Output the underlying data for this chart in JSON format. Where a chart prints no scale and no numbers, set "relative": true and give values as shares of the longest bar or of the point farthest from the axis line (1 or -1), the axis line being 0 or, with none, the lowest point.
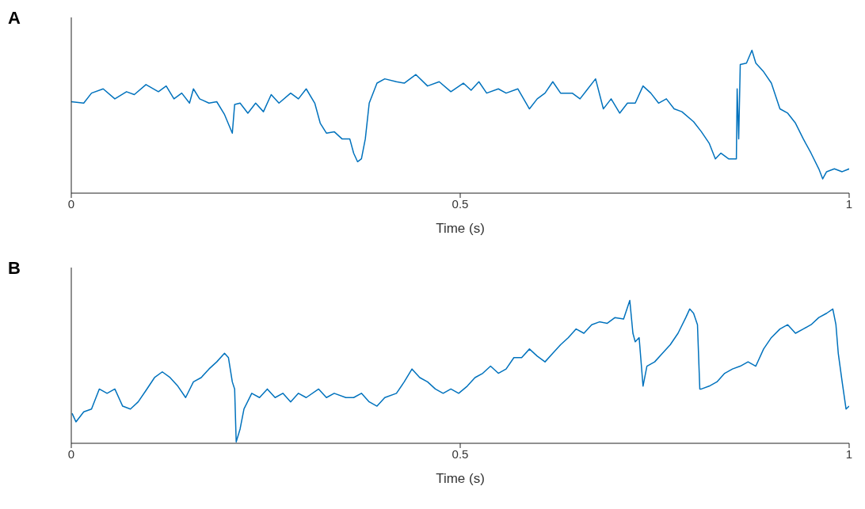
{
  "chart_data": [
    {
      "type": "line",
      "title": "A",
      "xlabel": "Time (s)",
      "relative": true,
      "xlim": [
        0,
        1
      ],
      "xticks": [
        0,
        0.5,
        1
      ],
      "line_style": "solid",
      "series": [
        {
          "color": "#0072bd",
          "x": [
            0,
            0.016,
            0.026,
            0.041,
            0.056,
            0.071,
            0.081,
            0.096,
            0.112,
            0.122,
            0.132,
            0.142,
            0.152,
            0.157,
            0.165,
            0.177,
            0.187,
            0.197,
            0.207,
            0.21,
            0.217,
            0.227,
            0.237,
            0.247,
            0.257,
            0.267,
            0.282,
            0.292,
            0.302,
            0.313,
            0.32,
            0.328,
            0.338,
            0.348,
            0.358,
            0.363,
            0.368,
            0.373,
            0.378,
            0.383,
            0.393,
            0.403,
            0.418,
            0.428,
            0.443,
            0.458,
            0.473,
            0.488,
            0.504,
            0.514,
            0.524,
            0.534,
            0.549,
            0.559,
            0.574,
            0.589,
            0.599,
            0.609,
            0.619,
            0.629,
            0.644,
            0.654,
            0.664,
            0.674,
            0.684,
            0.694,
            0.705,
            0.715,
            0.725,
            0.735,
            0.745,
            0.755,
            0.765,
            0.775,
            0.785,
            0.8,
            0.81,
            0.82,
            0.828,
            0.835,
            0.845,
            0.855,
            0.856,
            0.858,
            0.86,
            0.868,
            0.875,
            0.88,
            0.89,
            0.9,
            0.911,
            0.921,
            0.931,
            0.941,
            0.951,
            0.961,
            0.966,
            0.971,
            0.981,
            0.991,
            1
          ],
          "values": [
            0.64,
            0.63,
            0.7,
            0.73,
            0.66,
            0.71,
            0.69,
            0.76,
            0.71,
            0.75,
            0.66,
            0.7,
            0.63,
            0.73,
            0.66,
            0.63,
            0.64,
            0.55,
            0.42,
            0.62,
            0.63,
            0.56,
            0.63,
            0.57,
            0.69,
            0.63,
            0.7,
            0.66,
            0.73,
            0.63,
            0.49,
            0.42,
            0.43,
            0.38,
            0.38,
            0.28,
            0.22,
            0.24,
            0.38,
            0.63,
            0.77,
            0.8,
            0.78,
            0.77,
            0.83,
            0.75,
            0.78,
            0.71,
            0.77,
            0.72,
            0.78,
            0.7,
            0.73,
            0.7,
            0.73,
            0.59,
            0.66,
            0.7,
            0.78,
            0.7,
            0.7,
            0.66,
            0.73,
            0.8,
            0.59,
            0.66,
            0.56,
            0.63,
            0.63,
            0.75,
            0.7,
            0.63,
            0.66,
            0.59,
            0.57,
            0.5,
            0.43,
            0.35,
            0.24,
            0.28,
            0.24,
            0.24,
            0.73,
            0.38,
            0.9,
            0.91,
            1,
            0.91,
            0.85,
            0.77,
            0.59,
            0.56,
            0.49,
            0.38,
            0.28,
            0.17,
            0.1,
            0.15,
            0.17,
            0.15,
            0.17
          ]
        }
      ]
    },
    {
      "type": "line",
      "title": "B",
      "xlabel": "Time (s)",
      "relative": true,
      "xlim": [
        0,
        1
      ],
      "xticks": [
        0,
        0.5,
        1
      ],
      "line_style": "solid",
      "series": [
        {
          "color": "#0072bd",
          "x": [
            0.001,
            0.006,
            0.016,
            0.026,
            0.036,
            0.046,
            0.056,
            0.066,
            0.076,
            0.086,
            0.096,
            0.107,
            0.117,
            0.127,
            0.137,
            0.147,
            0.157,
            0.167,
            0.177,
            0.187,
            0.197,
            0.202,
            0.207,
            0.21,
            0.212,
            0.217,
            0.222,
            0.232,
            0.242,
            0.252,
            0.262,
            0.272,
            0.282,
            0.292,
            0.302,
            0.318,
            0.328,
            0.338,
            0.353,
            0.363,
            0.373,
            0.383,
            0.393,
            0.403,
            0.418,
            0.428,
            0.438,
            0.448,
            0.458,
            0.468,
            0.478,
            0.488,
            0.498,
            0.509,
            0.519,
            0.529,
            0.539,
            0.549,
            0.559,
            0.569,
            0.579,
            0.589,
            0.599,
            0.609,
            0.619,
            0.629,
            0.639,
            0.649,
            0.659,
            0.669,
            0.679,
            0.689,
            0.699,
            0.71,
            0.718,
            0.722,
            0.725,
            0.73,
            0.735,
            0.74,
            0.75,
            0.76,
            0.77,
            0.78,
            0.79,
            0.795,
            0.8,
            0.805,
            0.808,
            0.81,
            0.82,
            0.83,
            0.84,
            0.85,
            0.86,
            0.87,
            0.88,
            0.89,
            0.9,
            0.911,
            0.921,
            0.931,
            0.941,
            0.951,
            0.961,
            0.971,
            0.979,
            0.983,
            0.986,
            0.991,
            0.996,
            1
          ],
          "values": [
            0.21,
            0.15,
            0.22,
            0.24,
            0.38,
            0.35,
            0.38,
            0.26,
            0.24,
            0.29,
            0.37,
            0.46,
            0.5,
            0.46,
            0.4,
            0.32,
            0.43,
            0.46,
            0.52,
            0.57,
            0.63,
            0.6,
            0.43,
            0.38,
            0.01,
            0.1,
            0.24,
            0.35,
            0.32,
            0.38,
            0.32,
            0.35,
            0.29,
            0.35,
            0.32,
            0.38,
            0.32,
            0.35,
            0.32,
            0.32,
            0.35,
            0.29,
            0.26,
            0.32,
            0.35,
            0.43,
            0.52,
            0.46,
            0.43,
            0.38,
            0.35,
            0.38,
            0.35,
            0.4,
            0.46,
            0.49,
            0.54,
            0.49,
            0.52,
            0.6,
            0.6,
            0.66,
            0.61,
            0.57,
            0.63,
            0.69,
            0.74,
            0.8,
            0.77,
            0.83,
            0.85,
            0.84,
            0.88,
            0.87,
            1,
            0.77,
            0.71,
            0.74,
            0.4,
            0.54,
            0.57,
            0.63,
            0.69,
            0.77,
            0.88,
            0.94,
            0.91,
            0.83,
            0.38,
            0.38,
            0.4,
            0.43,
            0.49,
            0.52,
            0.54,
            0.57,
            0.54,
            0.66,
            0.74,
            0.8,
            0.83,
            0.77,
            0.8,
            0.83,
            0.88,
            0.91,
            0.94,
            0.83,
            0.63,
            0.43,
            0.24,
            0.26
          ]
        }
      ]
    }
  ]
}
